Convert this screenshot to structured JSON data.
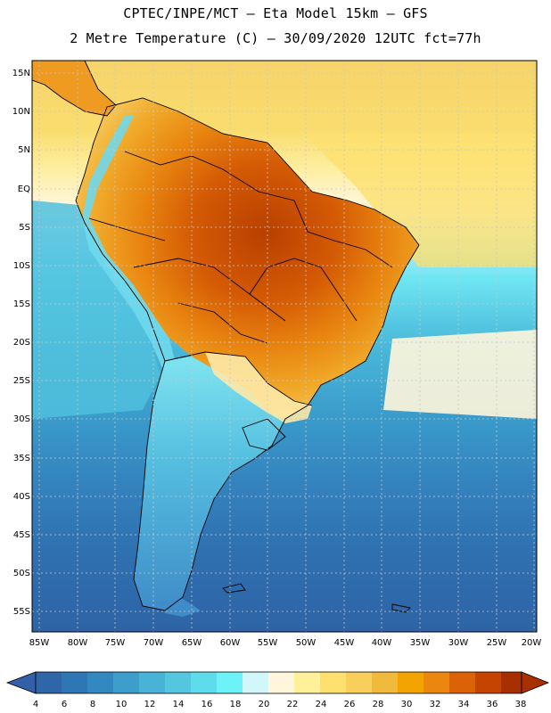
{
  "header": {
    "line1": "CPTEC/INPE/MCT –  Eta Model 15km – GFS",
    "line2": "2 Metre Temperature (C) – 30/09/2020 12UTC fct=77h"
  },
  "axes": {
    "lat_labels": [
      "15N",
      "10N",
      "5N",
      "EQ",
      "5S",
      "10S",
      "15S",
      "20S",
      "25S",
      "30S",
      "35S",
      "40S",
      "45S",
      "50S",
      "55S"
    ],
    "lon_labels": [
      "85W",
      "80W",
      "75W",
      "70W",
      "65W",
      "60W",
      "55W",
      "50W",
      "45W",
      "40W",
      "35W",
      "30W",
      "25W",
      "20W"
    ]
  },
  "legend": {
    "ticks": [
      "4",
      "6",
      "8",
      "10",
      "12",
      "14",
      "16",
      "18",
      "20",
      "22",
      "24",
      "26",
      "28",
      "30",
      "32",
      "34",
      "36",
      "38"
    ],
    "colors": [
      "#2e66a8",
      "#2f76b4",
      "#3488c0",
      "#3d9ecb",
      "#48b3d6",
      "#55c6e0",
      "#5fdcec",
      "#6df2f8",
      "#d2f7fa",
      "#fff6dc",
      "#fff19a",
      "#fde06f",
      "#f8cf5a",
      "#f0bb3c",
      "#f3a400",
      "#eb860f",
      "#dc6207",
      "#c54400",
      "#a83000"
    ],
    "under_color": "#3360a8",
    "over_color": "#a83000"
  },
  "map": {
    "ocean_color": "#3a7cc0",
    "grid_color": "#c8c8c8",
    "border_color": "#000000"
  }
}
